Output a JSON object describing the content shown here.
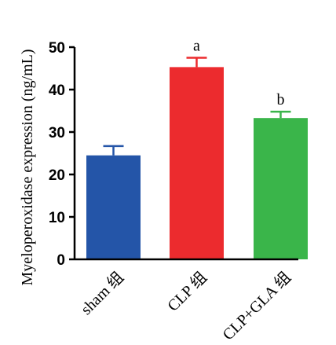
{
  "chart_data": {
    "type": "bar",
    "categories": [
      "sham 组",
      "CLP 组",
      "CLP+GLA 组"
    ],
    "values": [
      24.5,
      45.3,
      33.3
    ],
    "errors": [
      2.2,
      2.2,
      1.5
    ],
    "significance": [
      "",
      "a",
      "b"
    ],
    "colors": [
      "#2455a8",
      "#ec2b2e",
      "#3ab54a"
    ],
    "title": "",
    "xlabel": "",
    "ylabel": "Myeloperoxidase expression (ng/mL)",
    "ylim": [
      0,
      50
    ],
    "yticks": [
      0,
      10,
      20,
      30,
      40,
      50
    ],
    "grid": false,
    "legend": "none"
  }
}
